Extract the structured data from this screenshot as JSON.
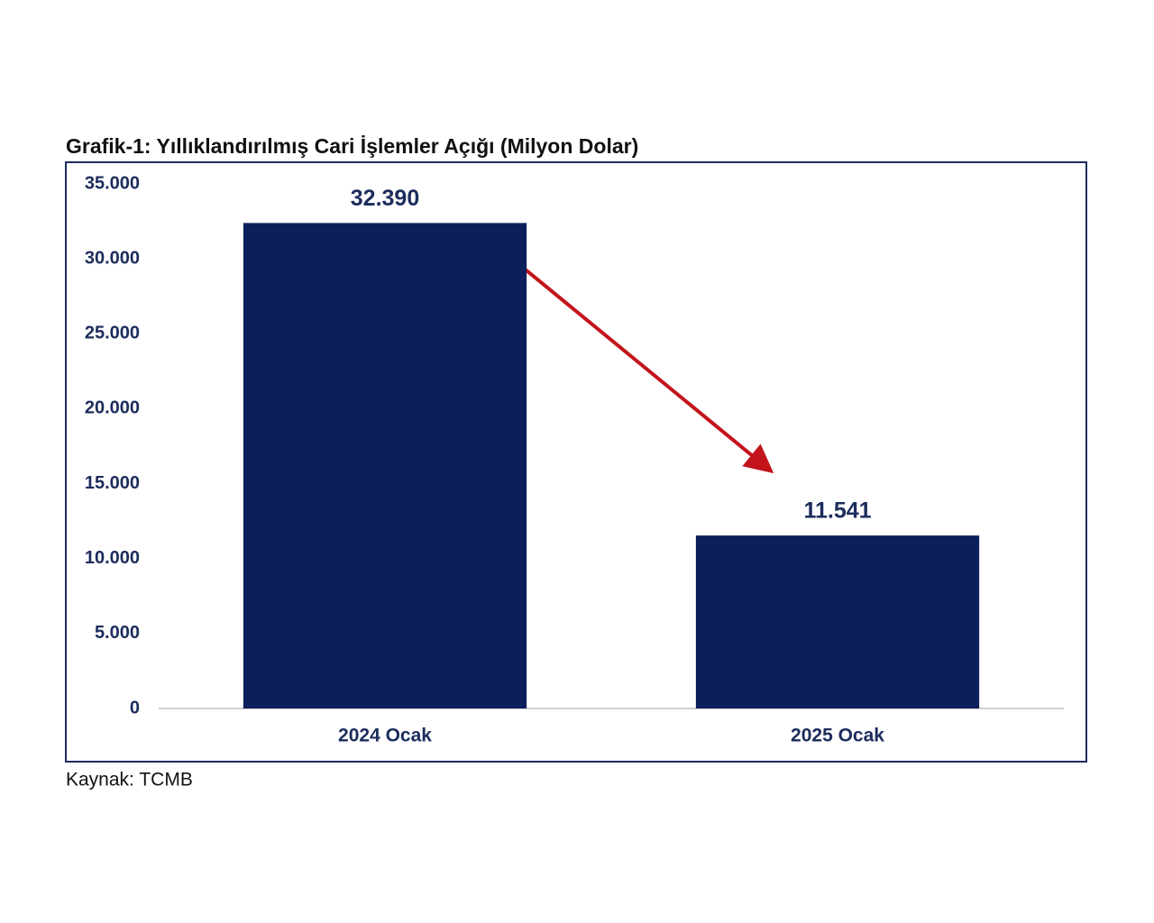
{
  "chart_data": {
    "type": "bar",
    "title": "Grafik-1: Yıllıklandırılmış Cari İşlemler Açığı (Milyon Dolar)",
    "source": "Kaynak: TCMB",
    "categories": [
      "2024 Ocak",
      "2025 Ocak"
    ],
    "values": [
      32390,
      11541
    ],
    "value_labels": [
      "32.390",
      "11.541"
    ],
    "color": "#0b1f5c",
    "ylim": [
      0,
      35000
    ],
    "yticks": [
      0,
      {
        "value": 5000,
        "label": "5.000"
      },
      {
        "value": 10000,
        "label": "10.000"
      },
      {
        "value": 15000,
        "label": "15.000"
      },
      {
        "value": 20000,
        "label": "20.000"
      },
      {
        "value": 25000,
        "label": "25.000"
      },
      {
        "value": 30000,
        "label": "30.000"
      },
      {
        "value": 35000,
        "label": "35.000"
      }
    ],
    "grid": false
  }
}
